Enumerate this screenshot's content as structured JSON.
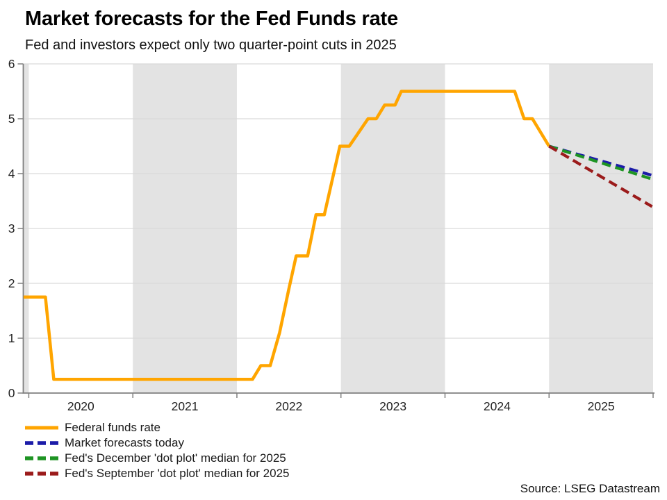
{
  "source": "Source: LSEG Datastream",
  "colors": {
    "background": "#FFFFFF",
    "band": "#E3E3E3",
    "gridline": "#D9D9D9",
    "axis": "#7F7F7F",
    "tick_text": "#222222",
    "orange": "#FFA500",
    "navy": "#1C1CA8",
    "green": "#1E9423",
    "dark_red": "#9B1B1B"
  },
  "chart_data": {
    "type": "line",
    "title": "Market forecasts for the Fed Funds rate",
    "subtitle": "Fed and investors expect only two quarter-point cuts in 2025",
    "xlabel": "",
    "ylabel": "",
    "x_range": [
      2019.947,
      2026.0
    ],
    "y_range": [
      0,
      6
    ],
    "y_ticks": [
      {
        "label": "0",
        "v": 0
      },
      {
        "label": "1",
        "v": 1
      },
      {
        "label": "2",
        "v": 2
      },
      {
        "label": "3",
        "v": 3
      },
      {
        "label": "4",
        "v": 4
      },
      {
        "label": "5",
        "v": 5
      },
      {
        "label": "6",
        "v": 6
      }
    ],
    "gridlines_y": [
      1,
      2,
      3,
      4,
      5,
      6
    ],
    "x_boundaries": [
      2020,
      2021,
      2022,
      2023,
      2024,
      2025,
      2026
    ],
    "x_tick_labels": [
      {
        "label": "2020",
        "x": 2020.5
      },
      {
        "label": "2021",
        "x": 2021.5
      },
      {
        "label": "2022",
        "x": 2022.5
      },
      {
        "label": "2023",
        "x": 2023.5
      },
      {
        "label": "2024",
        "x": 2024.5
      },
      {
        "label": "2025",
        "x": 2025.5
      }
    ],
    "shaded_periods": [
      [
        2019.947,
        2020.0
      ],
      [
        2021.0,
        2022.0
      ],
      [
        2023.0,
        2024.0
      ],
      [
        2025.0,
        2026.0
      ]
    ],
    "legend_position": "bottom-left",
    "grid": true,
    "series": [
      {
        "name": "Federal funds rate",
        "color_key": "orange",
        "style": "solid",
        "points": [
          [
            2019.95,
            1.75
          ],
          [
            2020.16,
            1.75
          ],
          [
            2020.24,
            0.25
          ],
          [
            2022.15,
            0.25
          ],
          [
            2022.23,
            0.5
          ],
          [
            2022.32,
            0.5
          ],
          [
            2022.41,
            1.1
          ],
          [
            2022.5,
            1.9
          ],
          [
            2022.57,
            2.5
          ],
          [
            2022.68,
            2.5
          ],
          [
            2022.76,
            3.25
          ],
          [
            2022.84,
            3.25
          ],
          [
            2022.99,
            4.5
          ],
          [
            2023.08,
            4.5
          ],
          [
            2023.26,
            5.0
          ],
          [
            2023.34,
            5.0
          ],
          [
            2023.42,
            5.25
          ],
          [
            2023.52,
            5.25
          ],
          [
            2023.58,
            5.5
          ],
          [
            2024.67,
            5.5
          ],
          [
            2024.76,
            5.0
          ],
          [
            2024.84,
            5.0
          ],
          [
            2025.0,
            4.5
          ]
        ]
      },
      {
        "name": "Market forecasts today",
        "color_key": "navy",
        "style": "dashed",
        "points": [
          [
            2025.0,
            4.5
          ],
          [
            2025.99,
            3.97
          ]
        ]
      },
      {
        "name": "Fed's December 'dot plot' median for 2025",
        "color_key": "green",
        "style": "dashed",
        "points": [
          [
            2025.0,
            4.5
          ],
          [
            2025.99,
            3.9
          ]
        ]
      },
      {
        "name": "Fed's September 'dot plot' median for 2025",
        "color_key": "dark_red",
        "style": "dashed",
        "points": [
          [
            2025.0,
            4.5
          ],
          [
            2025.99,
            3.4
          ]
        ]
      }
    ]
  }
}
